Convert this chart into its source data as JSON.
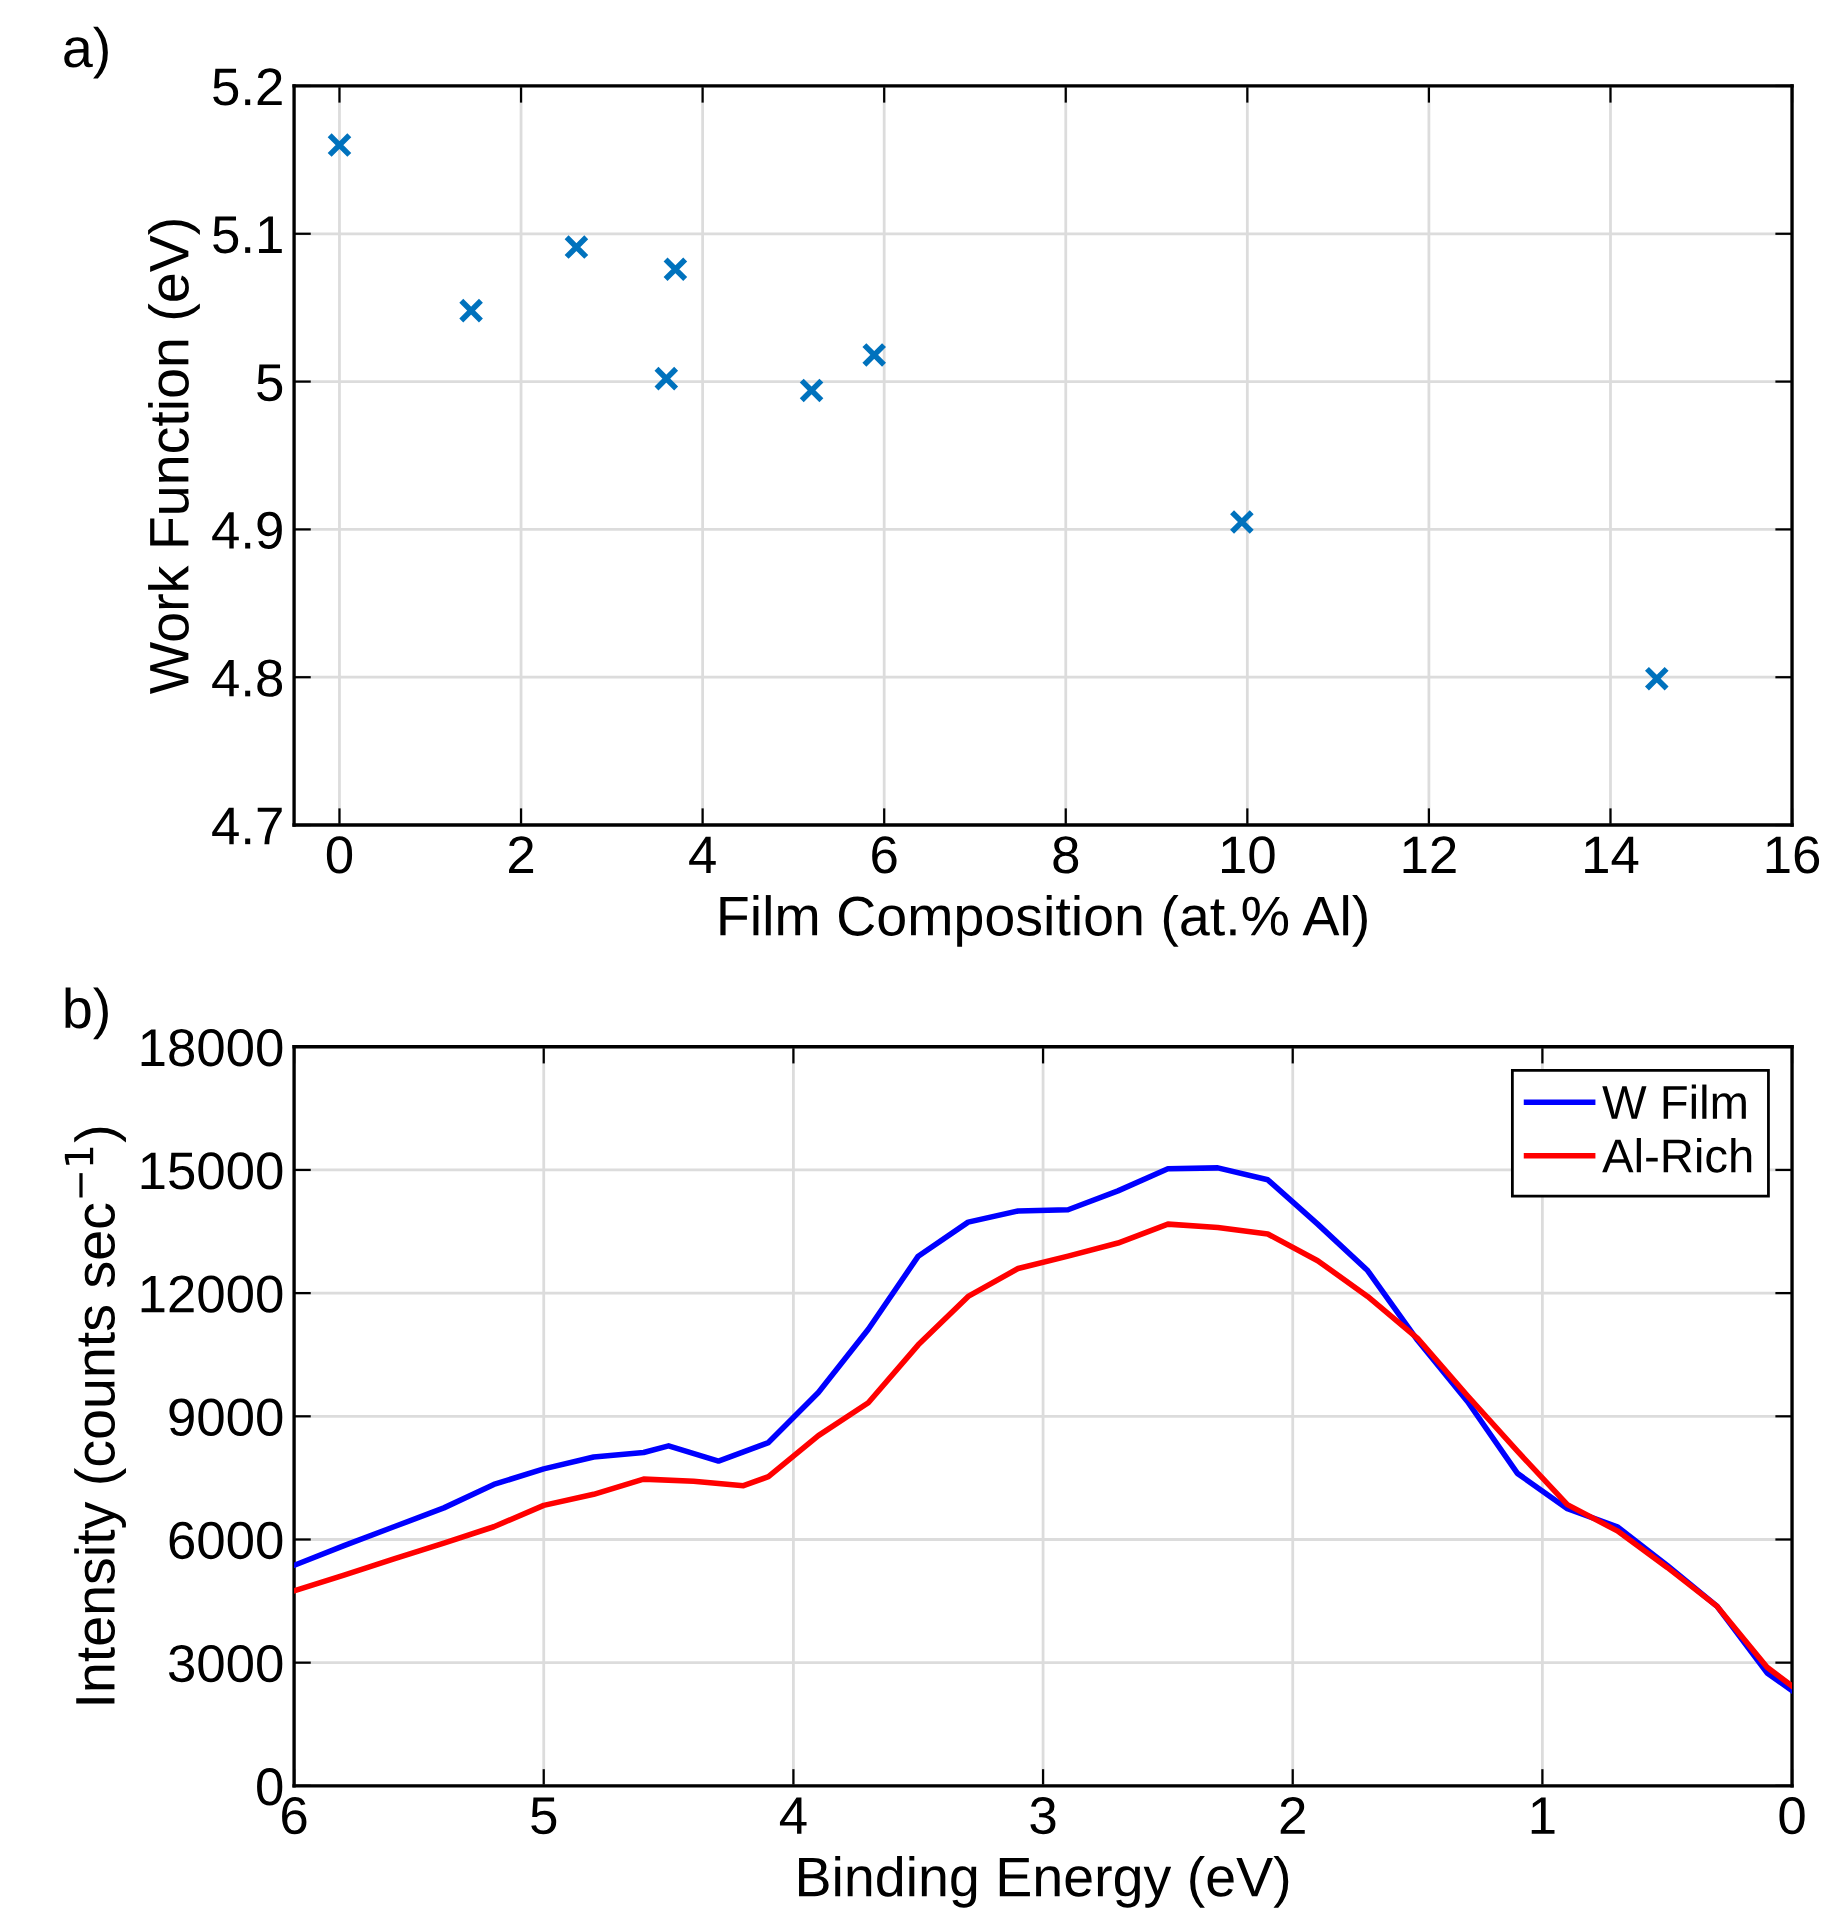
{
  "chart_data": [
    {
      "type": "scatter",
      "annotations": [
        "a)"
      ],
      "xlabel": "Film Composition (at.% Al)",
      "ylabel": "Work Function (eV)",
      "xlim": [
        -0.5,
        16
      ],
      "xticks": [
        0,
        2,
        4,
        6,
        8,
        10,
        12,
        14,
        16
      ],
      "ylim": [
        4.7,
        5.2
      ],
      "yticks": [
        4.7,
        4.8,
        4.9,
        5,
        5.1,
        5.2
      ],
      "grid": true,
      "marker": "cross",
      "series": [
        {
          "color": "#0072bd",
          "x": [
            0,
            1.45,
            2.61,
            3.7,
            3.6,
            5.2,
            5.89,
            9.94,
            14.51
          ],
          "values": [
            5.16,
            5.048,
            5.091,
            5.076,
            5.002,
            4.994,
            5.018,
            4.905,
            4.799
          ]
        }
      ]
    },
    {
      "type": "line",
      "annotations": [
        "b)"
      ],
      "xlabel": "Binding Energy (eV)",
      "ylabel": "Intensity (counts sec$^{−1}$)",
      "xlim": [
        6,
        0
      ],
      "xticks": [
        6,
        5,
        4,
        3,
        2,
        1,
        0
      ],
      "ylim": [
        0,
        18000
      ],
      "yticks": [
        0,
        3000,
        6000,
        9000,
        12000,
        15000,
        18000
      ],
      "grid": true,
      "legend": "top right",
      "line_style": "solid",
      "series": [
        {
          "name": "W Film",
          "color": "#0000ff",
          "x": [
            6.0,
            5.8,
            5.6,
            5.4,
            5.2,
            5.0,
            4.8,
            4.6,
            4.5,
            4.3,
            4.1,
            3.9,
            3.7,
            3.5,
            3.3,
            3.1,
            2.9,
            2.7,
            2.5,
            2.3,
            2.1,
            1.9,
            1.7,
            1.5,
            1.3,
            1.1,
            0.9,
            0.7,
            0.5,
            0.3,
            0.1,
            0.0
          ],
          "values": [
            5370,
            5850,
            6310,
            6770,
            7340,
            7720,
            8010,
            8120,
            8280,
            7910,
            8360,
            9580,
            11120,
            12900,
            13730,
            14000,
            14030,
            14490,
            15030,
            15050,
            14760,
            13680,
            12550,
            10850,
            9360,
            7610,
            6750,
            6310,
            5370,
            4370,
            2750,
            2320
          ]
        },
        {
          "name": "Al-Rich",
          "color": "#ff0000",
          "x": [
            6.0,
            5.8,
            5.6,
            5.4,
            5.2,
            5.0,
            4.8,
            4.6,
            4.4,
            4.2,
            4.1,
            3.9,
            3.7,
            3.5,
            3.3,
            3.1,
            2.9,
            2.7,
            2.5,
            2.3,
            2.1,
            1.9,
            1.7,
            1.5,
            1.3,
            1.1,
            0.9,
            0.7,
            0.5,
            0.3,
            0.1,
            0.0
          ],
          "values": [
            4750,
            5130,
            5530,
            5910,
            6310,
            6830,
            7100,
            7470,
            7420,
            7310,
            7530,
            8530,
            9330,
            10740,
            11920,
            12600,
            12900,
            13220,
            13680,
            13600,
            13440,
            12790,
            11920,
            10900,
            9500,
            8150,
            6850,
            6210,
            5320,
            4370,
            2890,
            2430
          ]
        }
      ]
    }
  ]
}
